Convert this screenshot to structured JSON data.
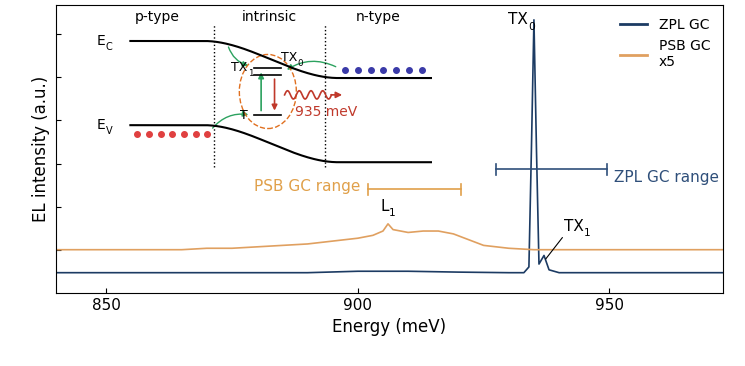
{
  "chart_data": {
    "type": "line",
    "xlabel": "Energy (meV)",
    "ylabel": "EL intensity (a.u.)",
    "xlim": [
      840,
      972.5
    ],
    "xticks": [
      850,
      900,
      950
    ],
    "ylim": [
      0,
      1
    ],
    "yticks": [
      0.15,
      0.3,
      0.45,
      0.6,
      0.75,
      0.9
    ],
    "tick_labels": "x",
    "legend": "upper right",
    "series": [
      {
        "name": "ZPL GC",
        "color": "#1c3b63",
        "x": [
          840,
          850,
          860,
          870,
          880,
          890,
          900,
          910,
          920,
          930,
          933,
          934,
          934.5,
          935,
          935.5,
          936,
          937,
          938,
          940,
          950,
          960,
          972.5
        ],
        "values": [
          0.07,
          0.07,
          0.07,
          0.07,
          0.07,
          0.07,
          0.075,
          0.075,
          0.072,
          0.07,
          0.07,
          0.09,
          0.5,
          0.95,
          0.5,
          0.1,
          0.13,
          0.08,
          0.07,
          0.07,
          0.07,
          0.07
        ]
      },
      {
        "name": "PSB GC\nx5",
        "color": "#e0a060",
        "x": [
          840,
          845,
          850,
          855,
          860,
          865,
          870,
          875,
          880,
          885,
          890,
          895,
          900,
          903,
          905,
          906,
          907,
          910,
          913,
          916,
          919,
          922,
          925,
          930,
          935,
          940,
          945,
          950,
          955,
          960,
          965,
          972.5
        ],
        "values": [
          0.15,
          0.15,
          0.15,
          0.15,
          0.15,
          0.15,
          0.155,
          0.155,
          0.16,
          0.165,
          0.17,
          0.18,
          0.19,
          0.2,
          0.215,
          0.24,
          0.22,
          0.21,
          0.215,
          0.215,
          0.205,
          0.185,
          0.165,
          0.155,
          0.15,
          0.15,
          0.15,
          0.15,
          0.15,
          0.15,
          0.15,
          0.15
        ]
      }
    ],
    "ranges": [
      {
        "label": "PSB GC range",
        "x": [
          902,
          920.5
        ],
        "y": 0.36,
        "color": "#e0a04a"
      },
      {
        "label": "ZPL GC range",
        "x": [
          927.5,
          949.5
        ],
        "y": 0.43,
        "color": "#2f4f7a"
      }
    ],
    "annotations": [
      {
        "text": "TX",
        "sub": "0",
        "x": 935,
        "y": 0.95
      },
      {
        "text": "L",
        "sub": "1",
        "x": 906,
        "y": 0.24
      },
      {
        "text": "TX",
        "sub": "1",
        "x": 937,
        "y": 0.13
      }
    ],
    "inset": {
      "regions": [
        "p-type",
        "intrinsic",
        "n-type"
      ],
      "bands": [
        {
          "text": "E",
          "sub": "C"
        },
        {
          "text": "E",
          "sub": "V"
        }
      ],
      "levels": [
        {
          "text": "TX",
          "sub": "1"
        },
        {
          "text": "TX",
          "sub": "0"
        },
        {
          "text": "T"
        }
      ],
      "emission": "935 meV"
    }
  }
}
